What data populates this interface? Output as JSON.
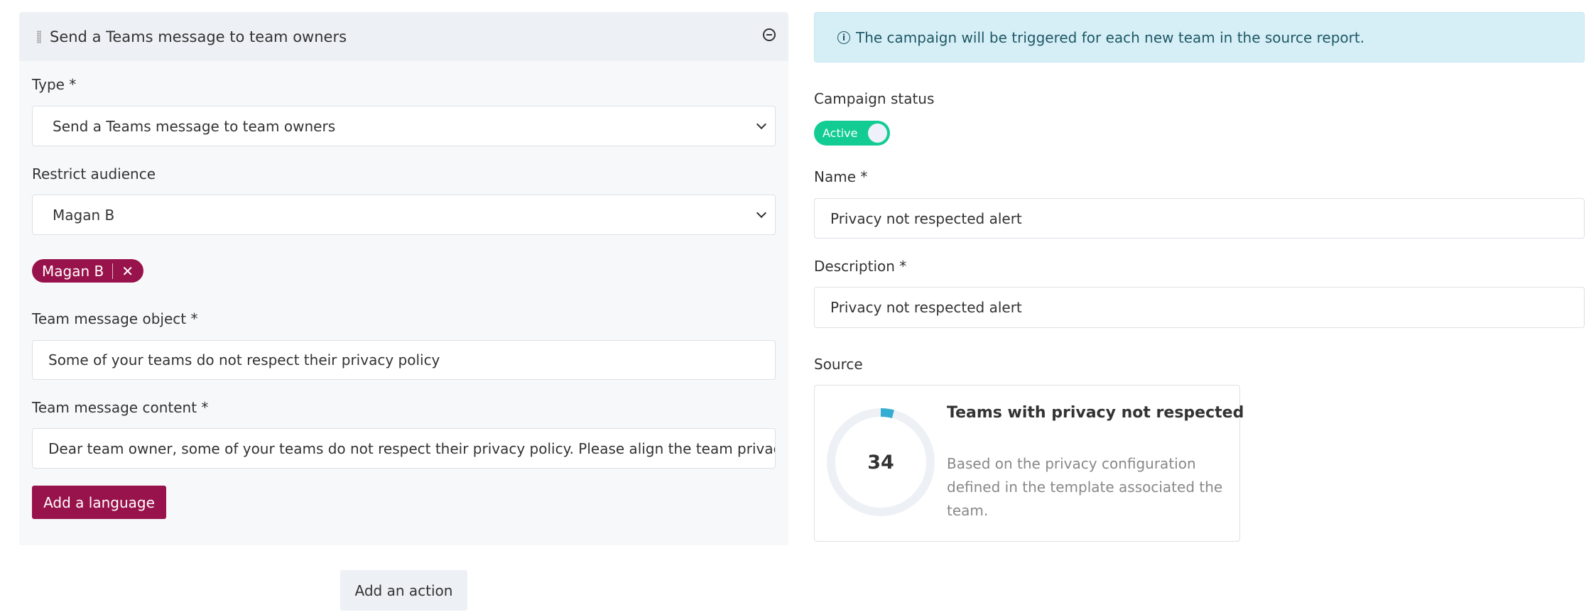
{
  "action_panel": {
    "title": "Send a Teams message to team owners",
    "type_label": "Type *",
    "type_value": "Send a Teams message to team owners",
    "audience_label": "Restrict audience",
    "audience_value": "Magan B",
    "audience_chips": [
      {
        "label": "Magan B",
        "remove": "✕"
      }
    ],
    "object_label": "Team message object *",
    "object_value": "Some of your teams do not respect their privacy policy",
    "content_label": "Team message content *",
    "content_value": "Dear team owner, some of your teams do not respect their privacy policy. Please align the team privacy to",
    "add_language": "Add a language"
  },
  "add_action": "Add an action",
  "info_alert": "The campaign will be triggered for each new team in the source report.",
  "campaign": {
    "status_label": "Campaign status",
    "status_value": "Active",
    "status_on": true,
    "name_label": "Name *",
    "name_value": "Privacy not respected alert",
    "description_label": "Description *",
    "description_value": "Privacy not respected alert",
    "source_label": "Source"
  },
  "source_card": {
    "count": "34",
    "progress_fraction": 0.04,
    "title": "Teams with privacy not respected",
    "description": "Based on the privacy configuration defined in the template associated the team."
  },
  "colors": {
    "primary": "#98134b",
    "active": "#12cc93",
    "info_bg": "#d6eff6",
    "donut": "#35acd2",
    "donut_track": "#edf0f5"
  }
}
